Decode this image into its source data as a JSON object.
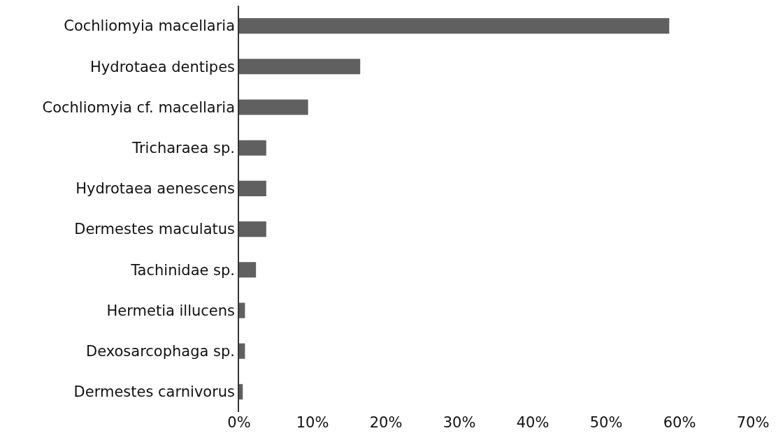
{
  "chart_data": {
    "type": "bar",
    "orientation": "horizontal",
    "categories": [
      "Cochliomyia macellaria",
      "Hydrotaea dentipes",
      "Cochliomyia cf. macellaria",
      "Tricharaea sp.",
      "Hydrotaea aenescens",
      "Dermestes maculatus",
      "Tachinidae sp.",
      "Hermetia illucens",
      "Dexosarcophaga sp.",
      "Dermestes carnivorus"
    ],
    "values": [
      58.6,
      16.5,
      9.4,
      3.7,
      3.7,
      3.7,
      2.3,
      0.8,
      0.8,
      0.5
    ],
    "color": "#606060",
    "xlim": [
      0,
      70
    ],
    "xticks": [
      {
        "value": 0,
        "label": "0%"
      },
      {
        "value": 10,
        "label": "10%"
      },
      {
        "value": 20,
        "label": "20%"
      },
      {
        "value": 30,
        "label": "30%"
      },
      {
        "value": 40,
        "label": "40%"
      },
      {
        "value": 50,
        "label": "50%"
      },
      {
        "value": 60,
        "label": "60%"
      },
      {
        "value": 70,
        "label": "70%"
      }
    ]
  }
}
